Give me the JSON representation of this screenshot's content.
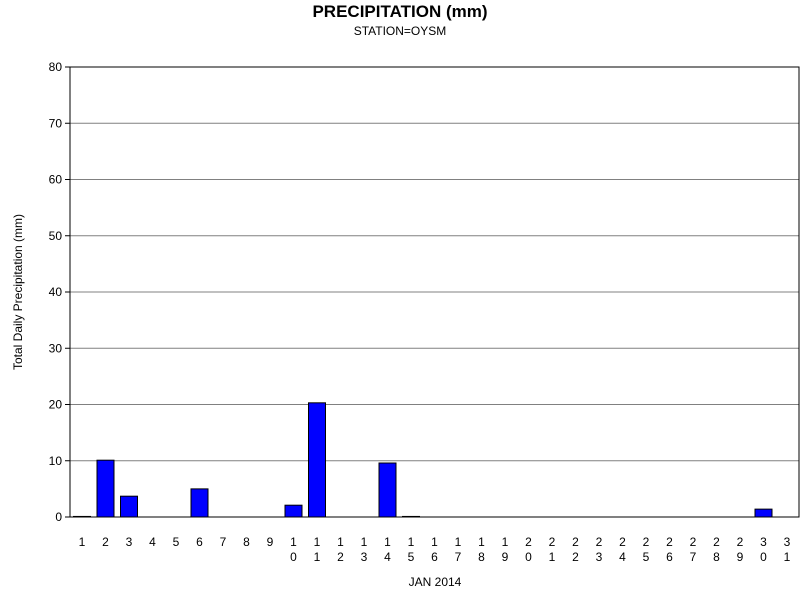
{
  "chart_data": {
    "type": "bar",
    "title": "PRECIPITATION (mm)",
    "subtitle": "STATION=OYSM",
    "xlabel": "JAN 2014",
    "ylabel": "Total Daily Precipitation (mm)",
    "ylim": [
      0,
      80
    ],
    "yticks": [
      0,
      10,
      20,
      30,
      40,
      50,
      60,
      70,
      80
    ],
    "grid": true,
    "bar_color": "#0000ff",
    "categories": [
      "1",
      "2",
      "3",
      "4",
      "5",
      "6",
      "7",
      "8",
      "9",
      "10",
      "11",
      "12",
      "13",
      "14",
      "15",
      "16",
      "17",
      "18",
      "19",
      "20",
      "21",
      "22",
      "23",
      "24",
      "25",
      "26",
      "27",
      "28",
      "29",
      "30",
      "31"
    ],
    "values": [
      0.1,
      10.1,
      3.7,
      0,
      0,
      5.0,
      0,
      0,
      0,
      2.1,
      20.3,
      0,
      0,
      9.6,
      0.1,
      0,
      0,
      0,
      0,
      0,
      0,
      0,
      0,
      0,
      0,
      0,
      0,
      0,
      0,
      1.4,
      0
    ]
  }
}
